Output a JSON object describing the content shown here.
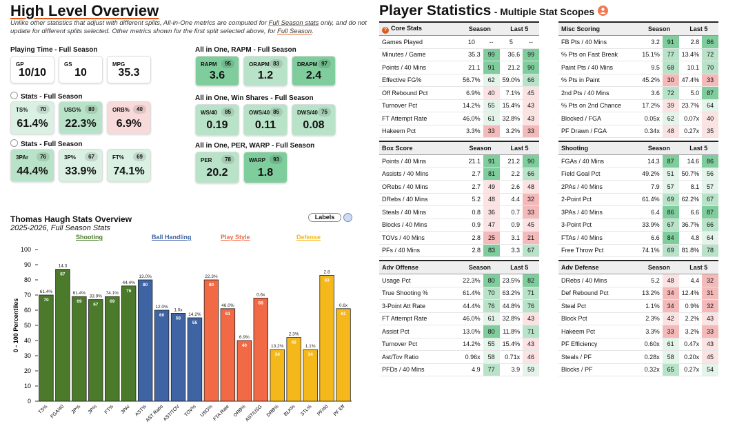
{
  "overview": {
    "title": "High Level Overview",
    "note_before": "Unlike other statistics that adjust with different splits, All-in-One metrics are computed for ",
    "note_link1": "Full Season stats",
    "note_mid": " only, and do not update for different splits selected. Other metrics shown for the first split selected above, for ",
    "note_link2": "Full Season",
    "note_end": "."
  },
  "playing_time": {
    "title": "Playing Time - Full Season",
    "cards": [
      {
        "label": "GP",
        "value": "10/10"
      },
      {
        "label": "GS",
        "value": "10"
      },
      {
        "label": "MPG",
        "value": "35.3"
      }
    ]
  },
  "stats1": {
    "title": "Stats - Full Season",
    "cards": [
      {
        "label": "TS%",
        "pct": "70",
        "value": "61.4%"
      },
      {
        "label": "USG%",
        "pct": "80",
        "value": "22.3%"
      },
      {
        "label": "ORB%",
        "pct": "40",
        "value": "6.9%"
      }
    ]
  },
  "stats2": {
    "title": "Stats - Full Season",
    "cards": [
      {
        "label": "3PAr",
        "pct": "76",
        "value": "44.4%"
      },
      {
        "label": "3P%",
        "pct": "67",
        "value": "33.9%"
      },
      {
        "label": "FT%",
        "pct": "69",
        "value": "74.1%"
      }
    ]
  },
  "rapm": {
    "title": "All in One, RAPM - Full Season",
    "cards": [
      {
        "label": "RAPM",
        "pct": "95",
        "value": "3.6"
      },
      {
        "label": "ORAPM",
        "pct": "83",
        "value": "1.2"
      },
      {
        "label": "DRAPM",
        "pct": "97",
        "value": "2.4"
      }
    ]
  },
  "winshares": {
    "title": "All in One, Win Shares - Full Season",
    "cards": [
      {
        "label": "WS/40",
        "pct": "85",
        "value": "0.19"
      },
      {
        "label": "OWS/40",
        "pct": "85",
        "value": "0.11"
      },
      {
        "label": "DWS/40",
        "pct": "75",
        "value": "0.08"
      }
    ]
  },
  "perwarp": {
    "title": "All in One, PER, WARP - Full Season",
    "cards": [
      {
        "label": "PER",
        "pct": "78",
        "value": "20.2"
      },
      {
        "label": "WARP",
        "pct": "93",
        "value": "1.8"
      }
    ]
  },
  "chart_header": {
    "title": "Thomas Haugh Stats Overview",
    "subtitle": "2025-2026, Full Season Stats",
    "toggle_label": "Labels"
  },
  "chart_data": {
    "type": "bar",
    "title": "Thomas Haugh Stats Overview",
    "subtitle": "2025-2026, Full Season Stats",
    "ylabel": "0 - 100 Percentiles",
    "ylim": [
      0,
      100
    ],
    "yticks": [
      0,
      10,
      20,
      30,
      40,
      50,
      60,
      70,
      80,
      90,
      100
    ],
    "groups": [
      {
        "name": "Shooting",
        "color": "#4a7a2a"
      },
      {
        "name": "Ball Handling",
        "color": "#3f64a3"
      },
      {
        "name": "Play Style",
        "color": "#f26a45"
      },
      {
        "name": "Defense",
        "color": "#f5b81a"
      }
    ],
    "bars": [
      {
        "category": "TS%",
        "percentile": 70,
        "stat": "61.4%",
        "group": 0
      },
      {
        "category": "FGA/40",
        "percentile": 87,
        "stat": "14.3",
        "group": 0
      },
      {
        "category": "2P%",
        "percentile": 69,
        "stat": "61.4%",
        "group": 0
      },
      {
        "category": "3P%",
        "percentile": 67,
        "stat": "33.9%",
        "group": 0
      },
      {
        "category": "FT%",
        "percentile": 69,
        "stat": "74.1%",
        "group": 0
      },
      {
        "category": "3PAr",
        "percentile": 76,
        "stat": "44.4%",
        "group": 0
      },
      {
        "category": "AST%",
        "percentile": 80,
        "stat": "13.0%",
        "group": 1
      },
      {
        "category": "AST Ratio",
        "percentile": 60,
        "stat": "12.0%",
        "group": 1
      },
      {
        "category": "AST/TOV",
        "percentile": 58,
        "stat": "1.0x",
        "group": 1
      },
      {
        "category": "TOV%",
        "percentile": 55,
        "stat": "14.2%",
        "group": 1
      },
      {
        "category": "USG%",
        "percentile": 80,
        "stat": "22.3%",
        "group": 2
      },
      {
        "category": "FTA Rate",
        "percentile": 61,
        "stat": "46.0%",
        "group": 2
      },
      {
        "category": "ORB%",
        "percentile": 40,
        "stat": "6.9%",
        "group": 2
      },
      {
        "category": "AST/USG",
        "percentile": 68,
        "stat": "0.6x",
        "group": 2
      },
      {
        "category": "DRB%",
        "percentile": 34,
        "stat": "13.2%",
        "group": 3
      },
      {
        "category": "BLK%",
        "percentile": 42,
        "stat": "2.3%",
        "group": 3
      },
      {
        "category": "STL%",
        "percentile": 34,
        "stat": "1.1%",
        "group": 3
      },
      {
        "category": "PF/40",
        "percentile": 83,
        "stat": "2.8",
        "group": 3
      },
      {
        "category": "PF Eff",
        "percentile": 61,
        "stat": "0.6x",
        "group": 3
      }
    ]
  },
  "player_stats": {
    "title": "Player Statistics",
    "subtitle": "- Multiple Stat Scopes",
    "col_season": "Season",
    "col_last5": "Last 5",
    "tables": [
      {
        "name": "Core Stats",
        "rows": [
          [
            "Games Played",
            "10",
            "--",
            "5",
            "--"
          ],
          [
            "Minutes / Game",
            "35.3",
            "99",
            "36.6",
            "99"
          ],
          [
            "Points / 40 Mins",
            "21.1",
            "91",
            "21.2",
            "90"
          ],
          [
            "Effective FG%",
            "56.7%",
            "62",
            "59.0%",
            "66"
          ],
          [
            "Off Rebound Pct",
            "6.9%",
            "40",
            "7.1%",
            "45"
          ],
          [
            "Turnover Pct",
            "14.2%",
            "55",
            "15.4%",
            "43"
          ],
          [
            "FT Attempt Rate",
            "46.0%",
            "61",
            "32.8%",
            "43"
          ],
          [
            "Hakeem Pct",
            "3.3%",
            "33",
            "3.2%",
            "33"
          ]
        ]
      },
      {
        "name": "Misc Scoring",
        "rows": [
          [
            "FB Pts / 40 Mins",
            "3.2",
            "91",
            "2.8",
            "86"
          ],
          [
            "% Pts on Fast Break",
            "15.1%",
            "77",
            "13.4%",
            "72"
          ],
          [
            "Paint Pts / 40 Mins",
            "9.5",
            "68",
            "10.1",
            "70"
          ],
          [
            "% Pts in Paint",
            "45.2%",
            "30",
            "47.4%",
            "33"
          ],
          [
            "2nd Pts / 40 Mins",
            "3.6",
            "72",
            "5.0",
            "87"
          ],
          [
            "% Pts on 2nd Chance",
            "17.2%",
            "39",
            "23.7%",
            "64"
          ],
          [
            "Blocked / FGA",
            "0.05x",
            "62",
            "0.07x",
            "40"
          ],
          [
            "PF Drawn / FGA",
            "0.34x",
            "48",
            "0.27x",
            "35"
          ]
        ]
      },
      {
        "name": "Box Score",
        "rows": [
          [
            "Points / 40 Mins",
            "21.1",
            "91",
            "21.2",
            "90"
          ],
          [
            "Assists / 40 Mins",
            "2.7",
            "81",
            "2.2",
            "66"
          ],
          [
            "ORebs / 40 Mins",
            "2.7",
            "49",
            "2.6",
            "48"
          ],
          [
            "DRebs / 40 Mins",
            "5.2",
            "48",
            "4.4",
            "32"
          ],
          [
            "Steals / 40 Mins",
            "0.8",
            "36",
            "0.7",
            "33"
          ],
          [
            "Blocks / 40 Mins",
            "0.9",
            "47",
            "0.9",
            "45"
          ],
          [
            "TOVs / 40 Mins",
            "2.8",
            "25",
            "3.1",
            "21"
          ],
          [
            "PFs / 40 Mins",
            "2.8",
            "83",
            "3.3",
            "67"
          ]
        ]
      },
      {
        "name": "Shooting",
        "rows": [
          [
            "FGAs / 40 Mins",
            "14.3",
            "87",
            "14.6",
            "86"
          ],
          [
            "Field Goal Pct",
            "49.2%",
            "51",
            "50.7%",
            "56"
          ],
          [
            "2PAs / 40 Mins",
            "7.9",
            "57",
            "8.1",
            "57"
          ],
          [
            "2-Point Pct",
            "61.4%",
            "69",
            "62.2%",
            "67"
          ],
          [
            "3PAs / 40 Mins",
            "6.4",
            "86",
            "6.6",
            "87"
          ],
          [
            "3-Point Pct",
            "33.9%",
            "67",
            "36.7%",
            "66"
          ],
          [
            "FTAs / 40 Mins",
            "6.6",
            "84",
            "4.8",
            "64"
          ],
          [
            "Free Throw Pct",
            "74.1%",
            "69",
            "81.8%",
            "78"
          ]
        ]
      },
      {
        "name": "Adv Offense",
        "rows": [
          [
            "Usage Pct",
            "22.3%",
            "80",
            "23.5%",
            "82"
          ],
          [
            "True Shooting %",
            "61.4%",
            "70",
            "63.2%",
            "71"
          ],
          [
            "3-Point Att Rate",
            "44.4%",
            "76",
            "44.8%",
            "76"
          ],
          [
            "FT Attempt Rate",
            "46.0%",
            "61",
            "32.8%",
            "43"
          ],
          [
            "Assist Pct",
            "13.0%",
            "80",
            "11.8%",
            "71"
          ],
          [
            "Turnover Pct",
            "14.2%",
            "55",
            "15.4%",
            "43"
          ],
          [
            "Ast/Tov Ratio",
            "0.96x",
            "58",
            "0.71x",
            "46"
          ],
          [
            "PFDs / 40 Mins",
            "4.9",
            "77",
            "3.9",
            "59"
          ]
        ]
      },
      {
        "name": "Adv Defense",
        "rows": [
          [
            "DRebs / 40 Mins",
            "5.2",
            "48",
            "4.4",
            "32"
          ],
          [
            "Def Rebound Pct",
            "13.2%",
            "34",
            "12.4%",
            "31"
          ],
          [
            "Steal Pct",
            "1.1%",
            "34",
            "0.9%",
            "32"
          ],
          [
            "Block Pct",
            "2.3%",
            "42",
            "2.2%",
            "43"
          ],
          [
            "Hakeem Pct",
            "3.3%",
            "33",
            "3.2%",
            "33"
          ],
          [
            "PF Efficiency",
            "0.60x",
            "61",
            "0.47x",
            "43"
          ],
          [
            "Steals / PF",
            "0.28x",
            "58",
            "0.20x",
            "45"
          ],
          [
            "Blocks / PF",
            "0.32x",
            "65",
            "0.27x",
            "54"
          ]
        ]
      }
    ]
  }
}
